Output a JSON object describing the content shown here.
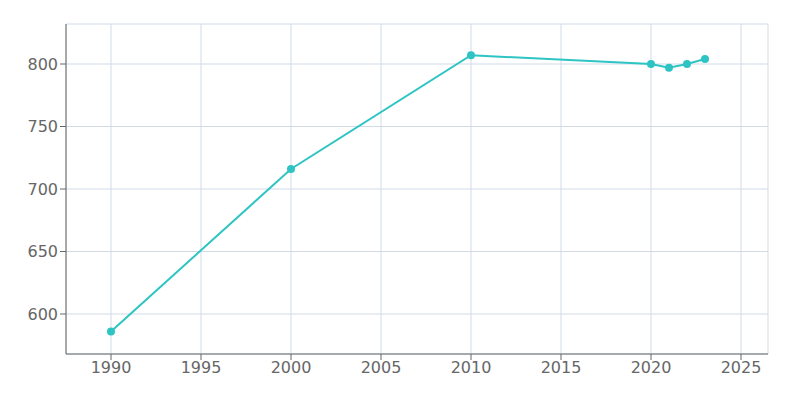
{
  "chart_data": {
    "type": "line",
    "x": [
      1990,
      2000,
      2010,
      2020,
      2021,
      2022,
      2023
    ],
    "values": [
      586,
      716,
      807,
      800,
      797,
      800,
      804
    ],
    "color": "#2EC4C4",
    "marker": "circle",
    "xlim": [
      1987.5,
      2026.5
    ],
    "ylim": [
      568,
      832
    ],
    "xticks": [
      1990,
      1995,
      2000,
      2005,
      2010,
      2015,
      2020,
      2025
    ],
    "yticks": [
      600,
      650,
      700,
      750,
      800
    ],
    "grid": true
  }
}
